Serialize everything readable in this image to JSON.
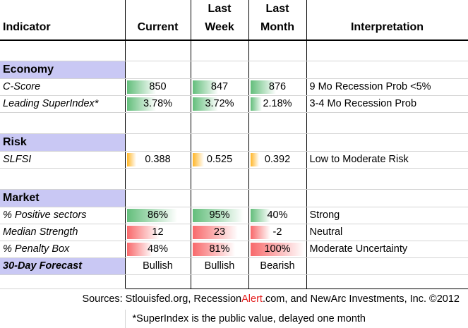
{
  "headers": {
    "indicator": "Indicator",
    "current": "Current",
    "last_week": [
      "Last",
      "Week"
    ],
    "last_month": [
      "Last",
      "Month"
    ],
    "interpretation": "Interpretation"
  },
  "sections": {
    "economy": "Economy",
    "risk": "Risk",
    "market": "Market"
  },
  "rows": {
    "cscore": {
      "label": "C-Score",
      "current": "850",
      "week": "847",
      "month": "876",
      "interp": "9 Mo Recession Prob <5%",
      "bar": "green",
      "fill": [
        0.45,
        0.45,
        0.45
      ]
    },
    "lsi": {
      "label": "Leading SuperIndex*",
      "current": "3.78%",
      "week": "3.72%",
      "month": "2.18%",
      "interp": "3-4 Mo Recession Prob",
      "bar": "green",
      "fill": [
        0.45,
        0.45,
        0.2
      ]
    },
    "slfsi": {
      "label": "SLFSI",
      "current": "0.388",
      "week": "0.525",
      "month": "0.392",
      "interp": "Low to Moderate Risk",
      "bar": "orange",
      "fill": [
        0.15,
        0.2,
        0.15
      ]
    },
    "pos": {
      "label": "% Positive sectors",
      "current": "86%",
      "week": "95%",
      "month": "40%",
      "interp": "Strong",
      "bar": "green",
      "fill": [
        0.78,
        0.9,
        0.35
      ]
    },
    "med": {
      "label": "Median Strength",
      "current": "12",
      "week": "23",
      "month": "-2",
      "interp": "Neutral",
      "bar": "red",
      "fill": [
        0.5,
        0.8,
        0.35
      ]
    },
    "pen": {
      "label": "% Penalty Box",
      "current": "48%",
      "week": "81%",
      "month": "100%",
      "interp": "Moderate Uncertainty",
      "bar": "red",
      "fill": [
        0.4,
        0.75,
        0.95
      ]
    },
    "fcst": {
      "label": "30-Day Forecast",
      "current": "Bullish",
      "week": "Bullish",
      "month": "Bearish",
      "interp": ""
    }
  },
  "footer": {
    "sources_prefix": "Sources: Stlouisfed.org, Recession",
    "sources_alert": "Alert",
    "sources_suffix": ".com, and NewArc Investments, Inc. ©2012",
    "note": "*SuperIndex is the public value, delayed one month"
  },
  "colors": {
    "section_bg": "#c9c8f4",
    "green": "#63be7b",
    "orange": "#ffb628",
    "red": "#f8696b"
  }
}
